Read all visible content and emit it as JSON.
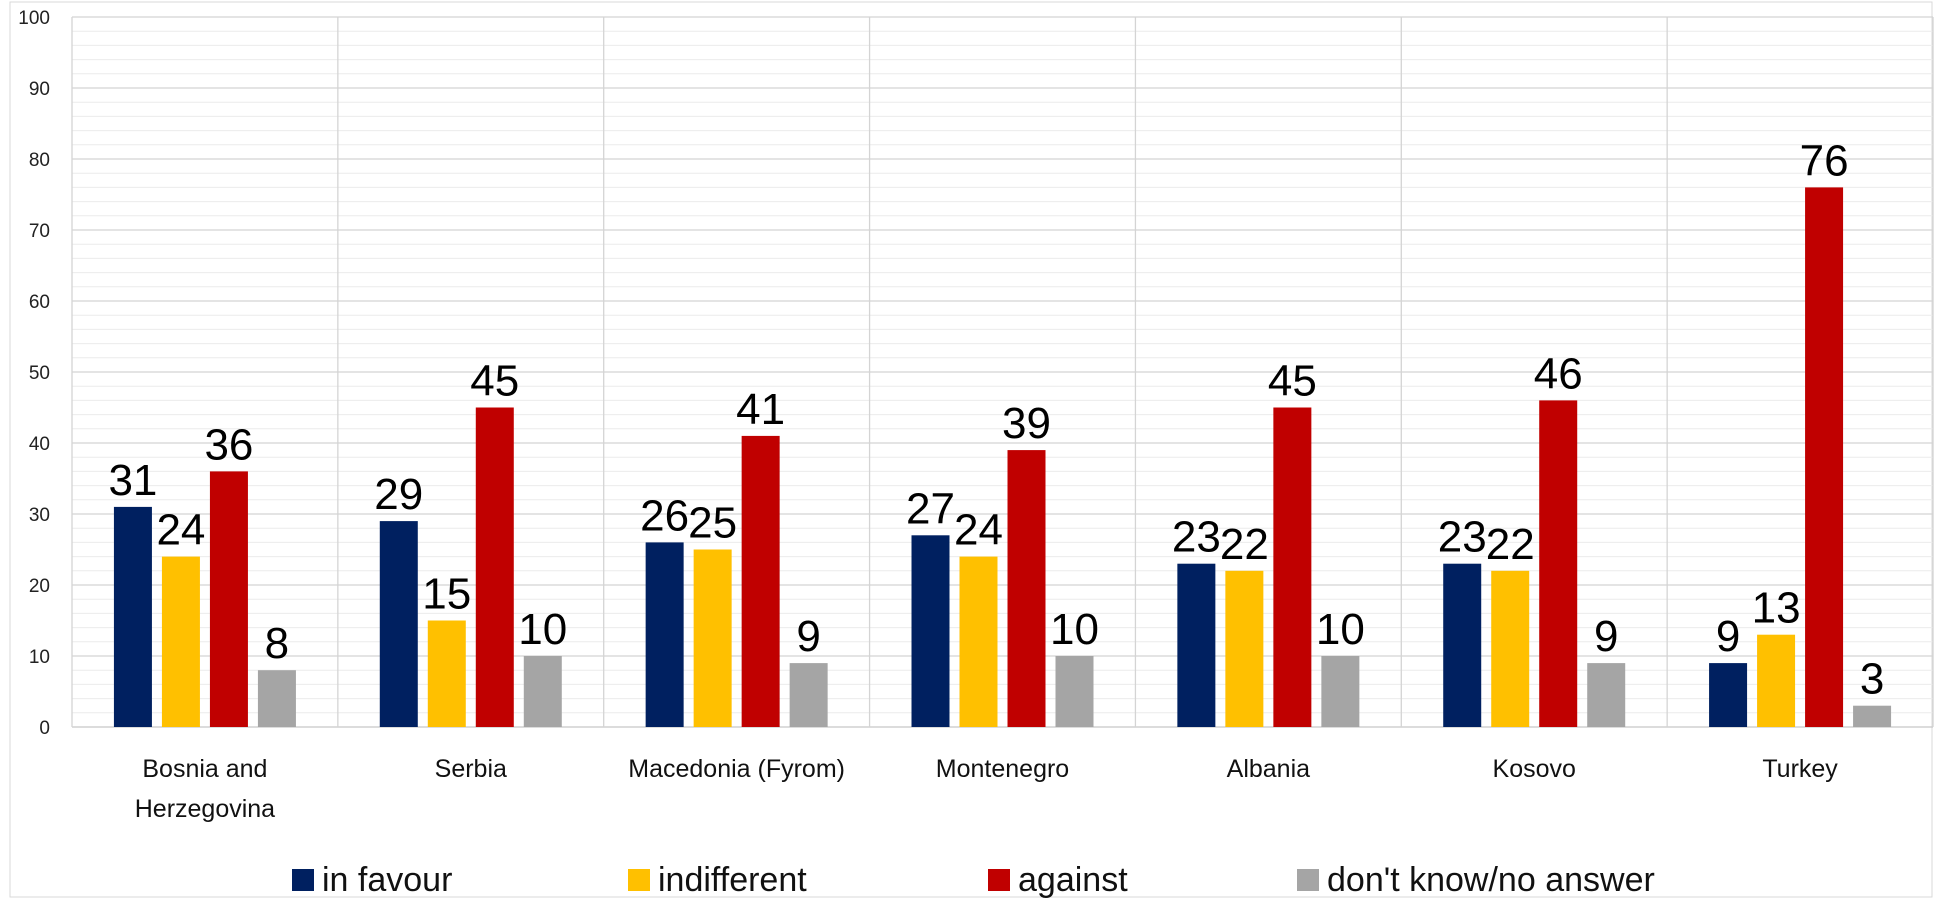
{
  "chart_data": {
    "type": "bar",
    "categories": [
      [
        "Bosnia and",
        "Herzegovina"
      ],
      [
        "Serbia"
      ],
      [
        "Macedonia (Fyrom)"
      ],
      [
        "Montenegro"
      ],
      [
        "Albania"
      ],
      [
        "Kosovo"
      ],
      [
        "Turkey"
      ]
    ],
    "series": [
      {
        "name": "in favour",
        "color": "#002060",
        "values": [
          31,
          29,
          26,
          27,
          23,
          23,
          9
        ]
      },
      {
        "name": "indifferent",
        "color": "#FFC000",
        "values": [
          24,
          15,
          25,
          24,
          22,
          22,
          13
        ]
      },
      {
        "name": "against",
        "color": "#C00000",
        "values": [
          36,
          45,
          41,
          39,
          45,
          46,
          76
        ]
      },
      {
        "name": "don't know/no answer",
        "color": "#A5A5A5",
        "values": [
          8,
          10,
          9,
          10,
          10,
          9,
          3
        ]
      }
    ],
    "yticks": [
      0,
      10,
      20,
      30,
      40,
      50,
      60,
      70,
      80,
      90,
      100
    ],
    "ylim": [
      0,
      100
    ],
    "minor_step": 2,
    "grid": true,
    "legend_position": "bottom",
    "data_labels": true
  }
}
